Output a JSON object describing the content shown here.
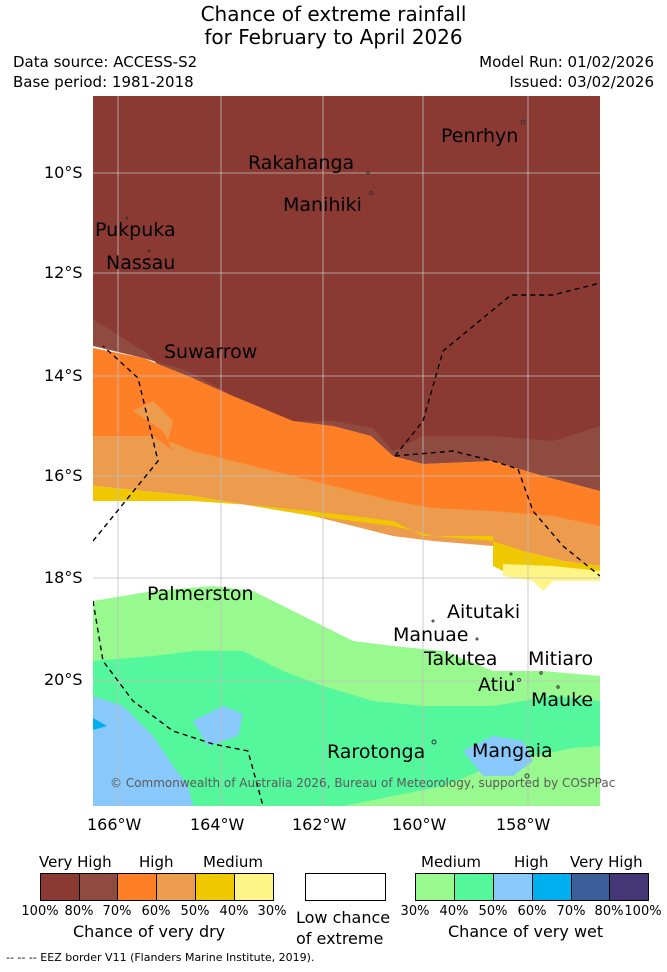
{
  "title": {
    "line1": "Chance of extreme rainfall",
    "line2": "for February to April 2026"
  },
  "meta": {
    "data_source": "Data source: ACCESS-S2",
    "base_period": "Base period: 1981-2018",
    "model_run": "Model Run: 01/02/2026",
    "issued": "Issued: 03/02/2026"
  },
  "axes": {
    "y_ticks": [
      "10°S",
      "12°S",
      "14°S",
      "16°S",
      "18°S",
      "20°S"
    ],
    "x_ticks": [
      "166°W",
      "164°W",
      "162°W",
      "160°W",
      "158°W"
    ]
  },
  "places": {
    "penrhyn": "Penrhyn",
    "rakahanga": "Rakahanga",
    "manihiki": "Manihiki",
    "pukpuka": "Pukpuka",
    "nassau": "Nassau",
    "suwarrow": "Suwarrow",
    "palmerston": "Palmerston",
    "aitutaki": "Aitutaki",
    "manuae": "Manuae",
    "takutea": "Takutea",
    "mitiaro": "Mitiaro",
    "atiu": "Atiu",
    "mauke": "Mauke",
    "rarotonga": "Rarotonga",
    "mangaia": "Mangaia"
  },
  "copyright": "© Commonwealth of Australia 2026, Bureau of Meteorology, supported by COSPPac",
  "legend": {
    "dry": {
      "heads": [
        "Very High",
        "High",
        "Medium"
      ],
      "colors": [
        "#8b3a33",
        "#8f4b3f",
        "#ff7f27",
        "#ed9b4c",
        "#f0c800",
        "#fff587"
      ],
      "pcts": [
        "100%",
        "80%",
        "70%",
        "60%",
        "50%",
        "40%",
        "30%"
      ],
      "caption": "Chance of very dry"
    },
    "low": {
      "color": "#ffffff",
      "caption_line1": "Low chance",
      "caption_line2": "of extreme"
    },
    "wet": {
      "heads": [
        "Medium",
        "High",
        "Very High"
      ],
      "colors": [
        "#98f98e",
        "#55f79d",
        "#89c8fa",
        "#00b0ee",
        "#3a5f9b",
        "#453775"
      ],
      "pcts": [
        "30%",
        "40%",
        "50%",
        "60%",
        "70%",
        "80%",
        "100%"
      ],
      "caption": "Chance of very wet"
    }
  },
  "eez_note": "-- -- -- EEZ border V11 (Flanders Marine Institute, 2019)."
}
